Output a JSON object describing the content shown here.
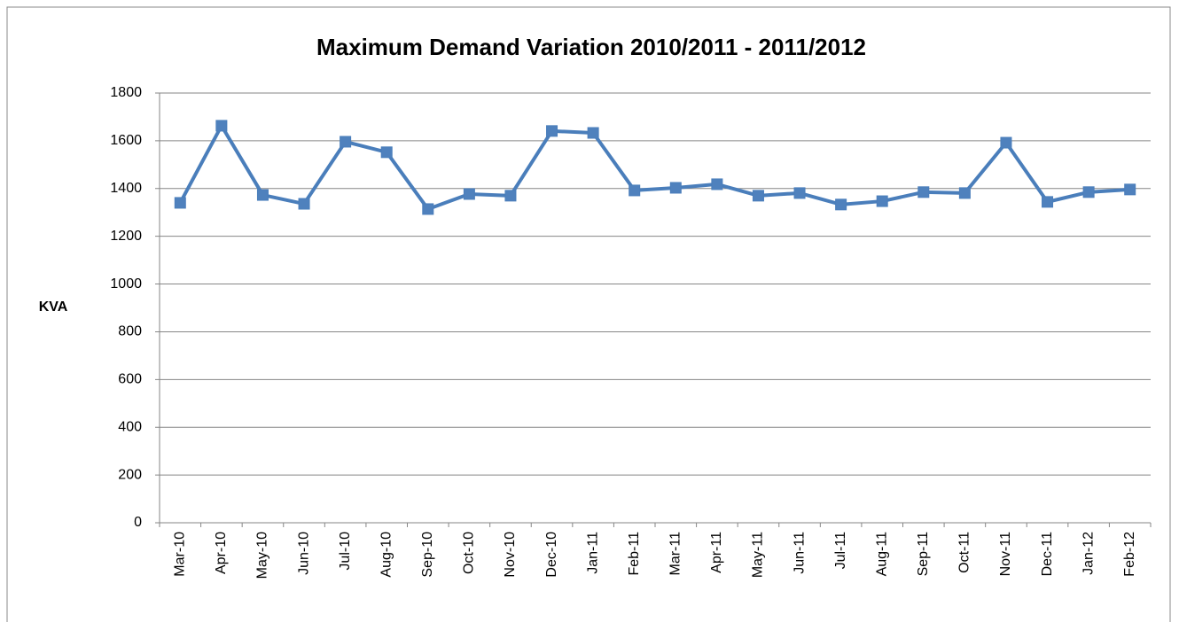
{
  "chart_data": {
    "type": "line",
    "title": "Maximum Demand Variation 2010/2011 - 2011/2012",
    "y_label": "KVA",
    "categories": [
      "Mar-10",
      "Apr-10",
      "May-10",
      "Jun-10",
      "Jul-10",
      "Aug-10",
      "Sep-10",
      "Oct-10",
      "Nov-10",
      "Dec-10",
      "Jan-11",
      "Feb-11",
      "Mar-11",
      "Apr-11",
      "May-11",
      "Jun-11",
      "Jul-11",
      "Aug-11",
      "Sep-11",
      "Oct-11",
      "Nov-11",
      "Dec-11",
      "Jan-12",
      "Feb-12"
    ],
    "series": [
      {
        "color": "#4a7ebb",
        "values": [
          1340,
          1663,
          1373,
          1336,
          1596,
          1552,
          1314,
          1377,
          1370,
          1641,
          1633,
          1392,
          1403,
          1418,
          1370,
          1381,
          1333,
          1347,
          1385,
          1381,
          1592,
          1344,
          1385,
          1396
        ]
      }
    ],
    "ylim": [
      0,
      1800
    ],
    "yticks": [
      0,
      200,
      400,
      600,
      800,
      1000,
      1200,
      1400,
      1600,
      1800
    ],
    "grid": true,
    "marker": "square"
  }
}
